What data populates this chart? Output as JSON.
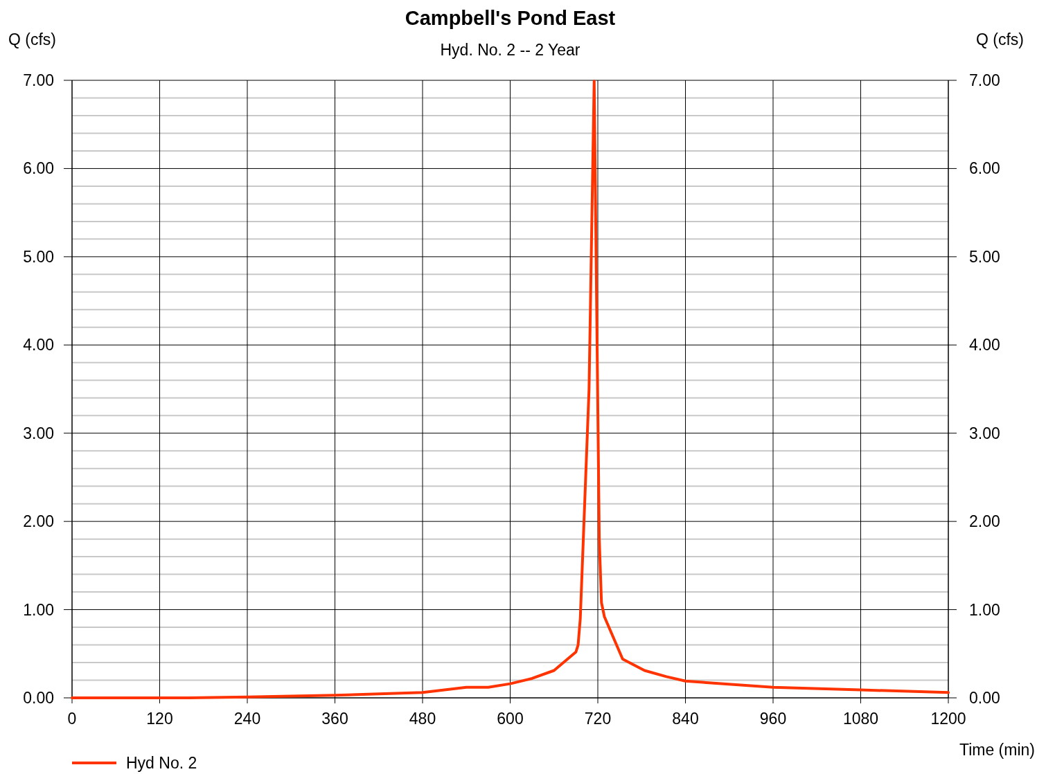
{
  "chart_data": {
    "type": "line",
    "title": "Campbell's Pond East",
    "subtitle": "Hyd. No. 2 -- 2 Year",
    "xlabel": "Time (min)",
    "ylabel": "Q (cfs)",
    "y2label": "Q (cfs)",
    "series": [
      {
        "name": "Hyd No. 2",
        "color": "#ff3300",
        "x": [
          0,
          160,
          240,
          360,
          480,
          540,
          570,
          600,
          630,
          660,
          690,
          693,
          696,
          708,
          715,
          722,
          725,
          729,
          754,
          784,
          814,
          840,
          960,
          1080,
          1200
        ],
        "values": [
          0,
          0,
          0.01,
          0.03,
          0.06,
          0.12,
          0.12,
          0.16,
          0.22,
          0.31,
          0.52,
          0.6,
          0.9,
          3.5,
          6.99,
          1.8,
          1.08,
          0.92,
          0.44,
          0.31,
          0.24,
          0.19,
          0.12,
          0.09,
          0.06
        ]
      }
    ],
    "xlim": [
      0,
      1200
    ],
    "xticks": [
      0,
      120,
      240,
      360,
      480,
      600,
      720,
      840,
      960,
      1080,
      1200
    ],
    "ylim": [
      0,
      7
    ],
    "yticks": [
      {
        "value": 0,
        "label": "0.00"
      },
      {
        "value": 0.2,
        "label": null
      },
      {
        "value": 0.4,
        "label": null
      },
      {
        "value": 0.6,
        "label": null
      },
      {
        "value": 0.8,
        "label": null
      },
      {
        "value": 1,
        "label": "1.00"
      },
      {
        "value": 1.2,
        "label": null
      },
      {
        "value": 1.4,
        "label": null
      },
      {
        "value": 1.6,
        "label": null
      },
      {
        "value": 1.8,
        "label": null
      },
      {
        "value": 2,
        "label": "2.00"
      },
      {
        "value": 2.2,
        "label": null
      },
      {
        "value": 2.4,
        "label": null
      },
      {
        "value": 2.6,
        "label": null
      },
      {
        "value": 2.8,
        "label": null
      },
      {
        "value": 3,
        "label": "3.00"
      },
      {
        "value": 3.2,
        "label": null
      },
      {
        "value": 3.4,
        "label": null
      },
      {
        "value": 3.6,
        "label": null
      },
      {
        "value": 3.8,
        "label": null
      },
      {
        "value": 4,
        "label": "4.00"
      },
      {
        "value": 4.2,
        "label": null
      },
      {
        "value": 4.4,
        "label": null
      },
      {
        "value": 4.6,
        "label": null
      },
      {
        "value": 4.8,
        "label": null
      },
      {
        "value": 5,
        "label": "5.00"
      },
      {
        "value": 5.2,
        "label": null
      },
      {
        "value": 5.4,
        "label": null
      },
      {
        "value": 5.6,
        "label": null
      },
      {
        "value": 5.8,
        "label": null
      },
      {
        "value": 6,
        "label": "6.00"
      },
      {
        "value": 6.2,
        "label": null
      },
      {
        "value": 6.4,
        "label": null
      },
      {
        "value": 6.6,
        "label": null
      },
      {
        "value": 6.8,
        "label": null
      },
      {
        "value": 7,
        "label": "7.00"
      }
    ],
    "y2lim": [
      0,
      7
    ],
    "y2ticks": [
      {
        "value": 0,
        "label": "0.00"
      },
      {
        "value": 1,
        "label": "1.00"
      },
      {
        "value": 2,
        "label": "2.00"
      },
      {
        "value": 3,
        "label": "3.00"
      },
      {
        "value": 4,
        "label": "4.00"
      },
      {
        "value": 5,
        "label": "5.00"
      },
      {
        "value": 6,
        "label": "6.00"
      },
      {
        "value": 7,
        "label": "7.00"
      }
    ],
    "grid": true,
    "legend": "bottom left",
    "marker": "none",
    "line_style": "solid"
  }
}
